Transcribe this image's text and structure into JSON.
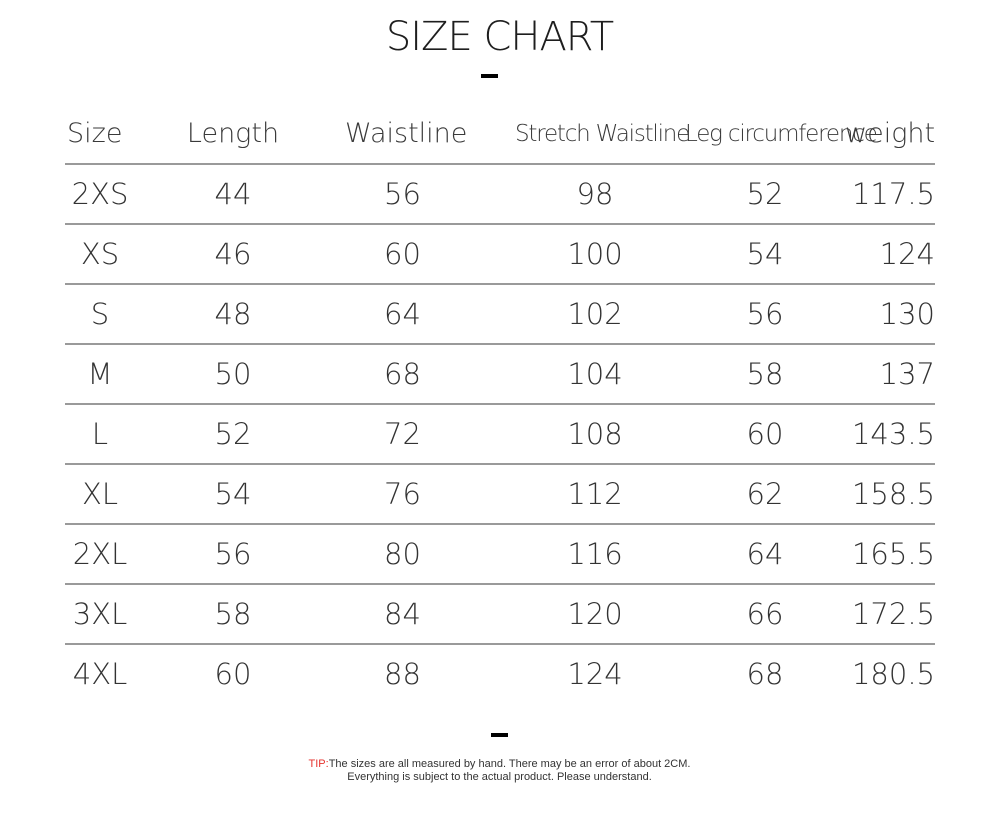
{
  "title": "SIZE CHART",
  "headers": {
    "size": "Size",
    "length": "Length",
    "waistline": "Waistline",
    "stretch_waistline": "Stretch Waistline",
    "leg_circumference": "Leg circumference",
    "weight": "weight"
  },
  "rows": [
    {
      "size": "2XS",
      "length": "44",
      "waistline": "56",
      "stretch_waistline": "98",
      "leg_circumference": "52",
      "weight": "117.5"
    },
    {
      "size": "XS",
      "length": "46",
      "waistline": "60",
      "stretch_waistline": "100",
      "leg_circumference": "54",
      "weight": "124"
    },
    {
      "size": "S",
      "length": "48",
      "waistline": "64",
      "stretch_waistline": "102",
      "leg_circumference": "56",
      "weight": "130"
    },
    {
      "size": "M",
      "length": "50",
      "waistline": "68",
      "stretch_waistline": "104",
      "leg_circumference": "58",
      "weight": "137"
    },
    {
      "size": "L",
      "length": "52",
      "waistline": "72",
      "stretch_waistline": "108",
      "leg_circumference": "60",
      "weight": "143.5"
    },
    {
      "size": "XL",
      "length": "54",
      "waistline": "76",
      "stretch_waistline": "112",
      "leg_circumference": "62",
      "weight": "158.5"
    },
    {
      "size": "2XL",
      "length": "56",
      "waistline": "80",
      "stretch_waistline": "116",
      "leg_circumference": "64",
      "weight": "165.5"
    },
    {
      "size": "3XL",
      "length": "58",
      "waistline": "84",
      "stretch_waistline": "120",
      "leg_circumference": "66",
      "weight": "172.5"
    },
    {
      "size": "4XL",
      "length": "60",
      "waistline": "88",
      "stretch_waistline": "124",
      "leg_circumference": "68",
      "weight": "180.5"
    }
  ],
  "tip": {
    "prefix": "TIP:",
    "line1": "The sizes are all measured by hand. There may be an error of about 2CM.",
    "line2": "Everything is subject to the actual product. Please understand."
  },
  "colors": {
    "tip_prefix": "#e5322d",
    "rule": "#9a9a9a",
    "text": "#333333"
  }
}
